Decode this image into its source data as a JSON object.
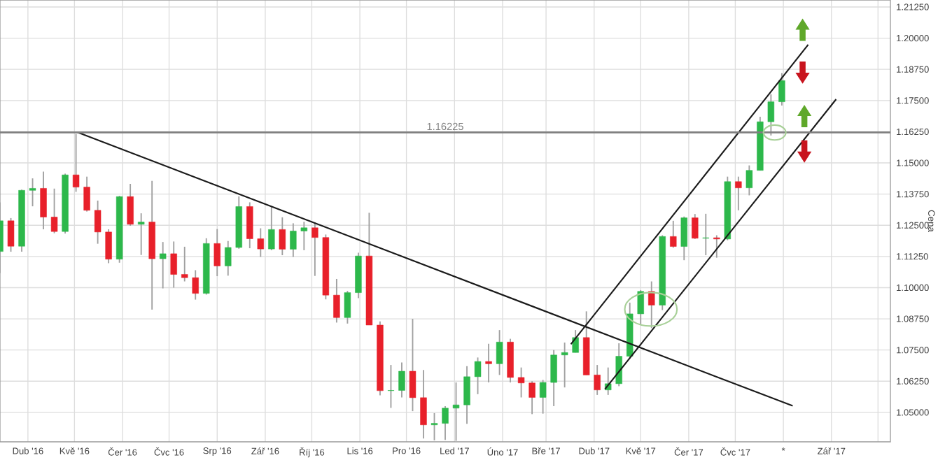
{
  "chart_data": {
    "type": "candlestick",
    "ylabel": "Cena",
    "xlim": [
      "2016-03-14",
      "2017-10-09"
    ],
    "ylim": [
      1.0382,
      1.2153
    ],
    "xticks": [
      {
        "value": "2016-04-01",
        "label": "Dub '16"
      },
      {
        "value": "2016-05-01",
        "label": "Kvě '16"
      },
      {
        "value": "2016-06-01",
        "label": "Čer '16"
      },
      {
        "value": "2016-07-01",
        "label": "Čvc '16"
      },
      {
        "value": "2016-08-01",
        "label": "Srp '16"
      },
      {
        "value": "2016-09-01",
        "label": "Zář '16"
      },
      {
        "value": "2016-10-01",
        "label": "Říj '16"
      },
      {
        "value": "2016-11-01",
        "label": "Lis '16"
      },
      {
        "value": "2016-12-01",
        "label": "Pro '16"
      },
      {
        "value": "2017-01-01",
        "label": "Led '17"
      },
      {
        "value": "2017-02-01",
        "label": "Úno '17"
      },
      {
        "value": "2017-03-01",
        "label": "Bře '17"
      },
      {
        "value": "2017-04-01",
        "label": "Dub '17"
      },
      {
        "value": "2017-05-01",
        "label": "Kvě '17"
      },
      {
        "value": "2017-06-01",
        "label": "Čer '17"
      },
      {
        "value": "2017-07-01",
        "label": "Čvc '17"
      },
      {
        "value": "2017-08-01",
        "label": "*"
      },
      {
        "value": "2017-09-01",
        "label": "Zář '17"
      },
      {
        "value": "2017-10-01",
        "label": null
      }
    ],
    "yticks": [
      {
        "value": 1.05,
        "label": "1.05000"
      },
      {
        "value": 1.0625,
        "label": "1.06250"
      },
      {
        "value": 1.075,
        "label": "1.07500"
      },
      {
        "value": 1.0875,
        "label": "1.08750"
      },
      {
        "value": 1.1,
        "label": "1.10000"
      },
      {
        "value": 1.1125,
        "label": "1.11250"
      },
      {
        "value": 1.125,
        "label": "1.12500"
      },
      {
        "value": 1.1375,
        "label": "1.13750"
      },
      {
        "value": 1.15,
        "label": "1.15000"
      },
      {
        "value": 1.1625,
        "label": "1.16250"
      },
      {
        "value": 1.175,
        "label": "1.17500"
      },
      {
        "value": 1.1875,
        "label": "1.18750"
      },
      {
        "value": 1.2,
        "label": "1.20000"
      },
      {
        "value": 1.2125,
        "label": "1.21250"
      }
    ],
    "grid": true,
    "ref_lines": [
      {
        "axis": "y",
        "value": 1.16225,
        "label": "1.16225",
        "color": "#808080"
      }
    ],
    "series": [
      {
        "x": [
          "2016-03-14",
          "2016-03-21",
          "2016-03-28",
          "2016-04-04",
          "2016-04-11",
          "2016-04-18",
          "2016-04-25",
          "2016-05-02",
          "2016-05-09",
          "2016-05-16",
          "2016-05-23",
          "2016-05-30",
          "2016-06-06",
          "2016-06-13",
          "2016-06-20",
          "2016-06-27",
          "2016-07-04",
          "2016-07-11",
          "2016-07-18",
          "2016-07-25",
          "2016-08-01",
          "2016-08-08",
          "2016-08-15",
          "2016-08-22",
          "2016-08-29",
          "2016-09-05",
          "2016-09-12",
          "2016-09-19",
          "2016-09-26",
          "2016-10-03",
          "2016-10-10",
          "2016-10-17",
          "2016-10-24",
          "2016-10-31",
          "2016-11-07",
          "2016-11-14",
          "2016-11-21",
          "2016-11-28",
          "2016-12-05",
          "2016-12-12",
          "2016-12-19",
          "2016-12-26",
          "2017-01-02",
          "2017-01-09",
          "2017-01-16",
          "2017-01-23",
          "2017-01-30",
          "2017-02-06",
          "2017-02-13",
          "2017-02-20",
          "2017-02-27",
          "2017-03-06",
          "2017-03-13",
          "2017-03-20",
          "2017-03-27",
          "2017-04-03",
          "2017-04-10",
          "2017-04-17",
          "2017-04-24",
          "2017-05-01",
          "2017-05-08",
          "2017-05-15",
          "2017-05-22",
          "2017-05-29",
          "2017-06-05",
          "2017-06-12",
          "2017-06-19",
          "2017-06-26",
          "2017-07-03",
          "2017-07-10",
          "2017-07-17",
          "2017-07-24",
          "2017-07-31"
        ],
        "ohlc": [
          [
            1.1145,
            1.1342,
            1.1058,
            1.1268
          ],
          [
            1.1268,
            1.1279,
            1.1144,
            1.1166
          ],
          [
            1.1166,
            1.1393,
            1.1144,
            1.139
          ],
          [
            1.139,
            1.1438,
            1.1326,
            1.1398
          ],
          [
            1.1398,
            1.1465,
            1.1234,
            1.1283
          ],
          [
            1.1283,
            1.1397,
            1.1218,
            1.1225
          ],
          [
            1.1225,
            1.1457,
            1.1217,
            1.1452
          ],
          [
            1.1452,
            1.1616,
            1.1384,
            1.1403
          ],
          [
            1.1403,
            1.1445,
            1.1305,
            1.131
          ],
          [
            1.131,
            1.1349,
            1.1176,
            1.1223
          ],
          [
            1.1223,
            1.1234,
            1.1098,
            1.1114
          ],
          [
            1.1114,
            1.1368,
            1.11,
            1.1365
          ],
          [
            1.1365,
            1.1416,
            1.1248,
            1.1254
          ],
          [
            1.1254,
            1.1298,
            1.1131,
            1.1263
          ],
          [
            1.1263,
            1.1428,
            1.0912,
            1.1116
          ],
          [
            1.1116,
            1.1183,
            1.0997,
            1.1136
          ],
          [
            1.1136,
            1.1185,
            1.1,
            1.1053
          ],
          [
            1.1053,
            1.1164,
            1.1025,
            1.104
          ],
          [
            1.104,
            1.107,
            1.0952,
            1.0977
          ],
          [
            1.0977,
            1.1198,
            1.0972,
            1.1177
          ],
          [
            1.1177,
            1.1235,
            1.1046,
            1.1087
          ],
          [
            1.1087,
            1.1187,
            1.1048,
            1.1161
          ],
          [
            1.1161,
            1.1366,
            1.1156,
            1.1325
          ],
          [
            1.1325,
            1.1342,
            1.1158,
            1.1196
          ],
          [
            1.1196,
            1.1238,
            1.1123,
            1.1155
          ],
          [
            1.1155,
            1.1327,
            1.115,
            1.1233
          ],
          [
            1.1233,
            1.1282,
            1.113,
            1.1154
          ],
          [
            1.1154,
            1.1258,
            1.1123,
            1.1227
          ],
          [
            1.1227,
            1.1264,
            1.115,
            1.124
          ],
          [
            1.124,
            1.1262,
            1.1047,
            1.1201
          ],
          [
            1.1201,
            1.1213,
            1.0953,
            1.097
          ],
          [
            1.097,
            1.1035,
            1.086,
            1.088
          ],
          [
            1.088,
            1.0987,
            1.0856,
            1.098
          ],
          [
            1.098,
            1.114,
            1.0958,
            1.1127
          ],
          [
            1.1127,
            1.13,
            1.085,
            1.085
          ],
          [
            1.085,
            1.0865,
            1.0568,
            1.0587
          ],
          [
            1.0587,
            1.069,
            1.0518,
            1.0588
          ],
          [
            1.0588,
            1.07,
            1.056,
            1.0665
          ],
          [
            1.0665,
            1.0875,
            1.0505,
            1.0559
          ],
          [
            1.0559,
            1.067,
            1.0395,
            1.045
          ],
          [
            1.045,
            1.0497,
            1.0388,
            1.0456
          ],
          [
            1.0456,
            1.0525,
            1.039,
            1.0517
          ],
          [
            1.0517,
            1.062,
            1.0386,
            1.053
          ],
          [
            1.053,
            1.0685,
            1.0454,
            1.0643
          ],
          [
            1.0643,
            1.072,
            1.0573,
            1.0704
          ],
          [
            1.0704,
            1.0775,
            1.062,
            1.0695
          ],
          [
            1.0695,
            1.083,
            1.065,
            1.0782
          ],
          [
            1.0782,
            1.0795,
            1.062,
            1.064
          ],
          [
            1.064,
            1.068,
            1.056,
            1.0618
          ],
          [
            1.0618,
            1.0625,
            1.0493,
            1.056
          ],
          [
            1.056,
            1.063,
            1.0495,
            1.062
          ],
          [
            1.062,
            1.075,
            1.0525,
            1.073
          ],
          [
            1.073,
            1.078,
            1.06,
            1.074
          ],
          [
            1.074,
            1.083,
            1.074,
            1.08
          ],
          [
            1.08,
            1.0905,
            1.065,
            1.065
          ],
          [
            1.065,
            1.069,
            1.057,
            1.059
          ],
          [
            1.059,
            1.068,
            1.057,
            1.0615
          ],
          [
            1.0615,
            1.0777,
            1.0605,
            1.0725
          ],
          [
            1.0725,
            1.094,
            1.0715,
            1.0895
          ],
          [
            1.0895,
            1.099,
            1.085,
            1.0985
          ],
          [
            1.0985,
            1.1025,
            1.0838,
            1.093
          ],
          [
            1.093,
            1.121,
            1.091,
            1.1205
          ],
          [
            1.1205,
            1.1268,
            1.116,
            1.1165
          ],
          [
            1.1165,
            1.1285,
            1.111,
            1.128
          ],
          [
            1.128,
            1.1295,
            1.1195,
            1.1198
          ],
          [
            1.1198,
            1.1296,
            1.113,
            1.12
          ],
          [
            1.12,
            1.121,
            1.112,
            1.1195
          ],
          [
            1.1195,
            1.1445,
            1.119,
            1.1425
          ],
          [
            1.1425,
            1.1445,
            1.131,
            1.14
          ],
          [
            1.14,
            1.149,
            1.137,
            1.147
          ],
          [
            1.147,
            1.1685,
            1.147,
            1.1665
          ],
          [
            1.1665,
            1.1775,
            1.161,
            1.1745
          ],
          [
            1.1745,
            1.186,
            1.173,
            1.183
          ]
        ]
      },
      {
        "type": "line",
        "color": "#1a1a1a",
        "x": [
          "2016-05-03",
          "2017-08-07"
        ],
        "values": [
          1.16225,
          1.0526
        ]
      },
      {
        "type": "line",
        "color": "#1a1a1a",
        "x": [
          "2017-03-17",
          "2017-08-17"
        ],
        "values": [
          1.0773,
          1.1974
        ]
      },
      {
        "type": "line",
        "color": "#1a1a1a",
        "x": [
          "2017-04-08",
          "2017-09-04"
        ],
        "values": [
          1.0593,
          1.1755
        ]
      }
    ]
  }
}
